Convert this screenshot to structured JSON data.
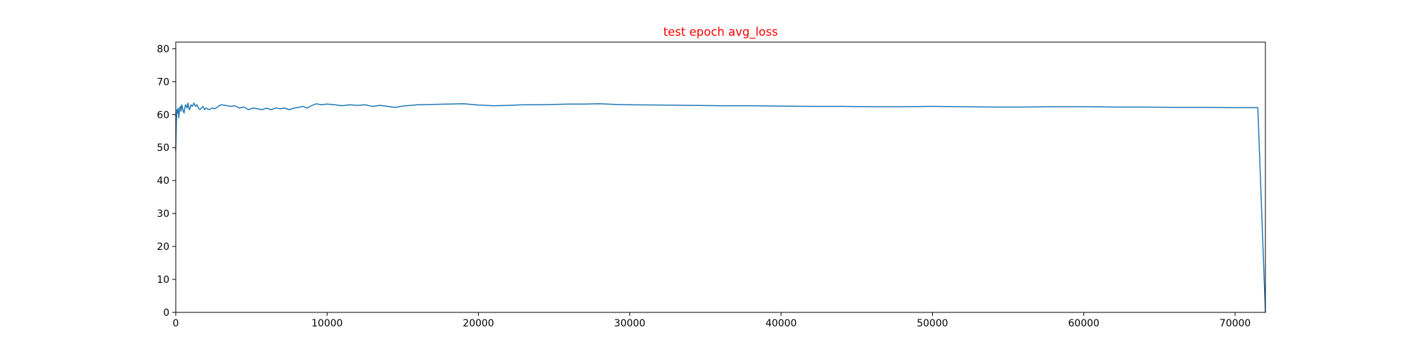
{
  "chart_data": {
    "type": "line",
    "title": "test epoch avg_loss",
    "title_color": "#ff0000",
    "xlabel": "",
    "ylabel": "",
    "xlim": [
      0,
      72000
    ],
    "ylim": [
      0,
      82
    ],
    "grid": false,
    "x_ticks": [
      0,
      10000,
      20000,
      30000,
      40000,
      50000,
      60000,
      70000
    ],
    "x_tick_labels": [
      "0",
      "10000",
      "20000",
      "30000",
      "40000",
      "50000",
      "60000",
      "70000"
    ],
    "y_ticks": [
      0,
      10,
      20,
      30,
      40,
      50,
      60,
      70,
      80
    ],
    "y_tick_labels": [
      "0",
      "10",
      "20",
      "30",
      "40",
      "50",
      "60",
      "70",
      "80"
    ],
    "series": [
      {
        "color": "#1f77b4",
        "x": [
          0,
          40,
          80,
          120,
          160,
          200,
          250,
          300,
          350,
          400,
          450,
          500,
          550,
          600,
          650,
          700,
          750,
          800,
          850,
          900,
          950,
          1000,
          1100,
          1200,
          1300,
          1400,
          1500,
          1600,
          1700,
          1800,
          1900,
          2000,
          2200,
          2400,
          2600,
          2800,
          3000,
          3300,
          3600,
          3900,
          4200,
          4500,
          4800,
          5100,
          5400,
          5700,
          6000,
          6300,
          6600,
          6900,
          7200,
          7500,
          7800,
          8100,
          8400,
          8700,
          9000,
          9300,
          9600,
          10000,
          10500,
          11000,
          11500,
          12000,
          12500,
          13000,
          13500,
          14000,
          14500,
          15000,
          15500,
          16000,
          17000,
          18000,
          19000,
          20000,
          21000,
          22000,
          23000,
          24000,
          25000,
          26000,
          27000,
          28000,
          29000,
          30000,
          32000,
          34000,
          36000,
          38000,
          40000,
          42000,
          44000,
          46000,
          48000,
          50000,
          52000,
          54000,
          56000,
          58000,
          60000,
          62000,
          64000,
          66000,
          68000,
          70000,
          71500,
          72000
        ],
        "y": [
          49,
          58,
          61.5,
          60.5,
          62,
          59,
          61.5,
          62.5,
          61,
          63,
          62,
          61,
          60.5,
          62,
          63,
          62.5,
          62,
          63.5,
          62.5,
          61.5,
          62,
          63,
          62.5,
          63.5,
          62.5,
          63,
          62,
          61.5,
          62,
          62.5,
          61.5,
          62,
          61.5,
          62,
          61.8,
          62.5,
          63,
          62.8,
          62.5,
          62.7,
          62,
          62.3,
          61.5,
          62,
          61.8,
          61.5,
          62,
          61.5,
          62,
          61.8,
          62,
          61.5,
          62,
          62.2,
          62.5,
          62,
          62.8,
          63.3,
          63,
          63.2,
          63,
          62.7,
          63,
          62.8,
          63,
          62.5,
          62.8,
          62.5,
          62.2,
          62.6,
          62.8,
          63,
          63.1,
          63.2,
          63.3,
          62.9,
          62.7,
          62.8,
          63,
          63,
          63.1,
          63.2,
          63.2,
          63.3,
          63.1,
          63,
          62.9,
          62.8,
          62.7,
          62.7,
          62.6,
          62.5,
          62.5,
          62.4,
          62.4,
          62.5,
          62.4,
          62.3,
          62.3,
          62.4,
          62.4,
          62.3,
          62.3,
          62.2,
          62.2,
          62.1,
          62.1,
          0
        ]
      }
    ]
  }
}
